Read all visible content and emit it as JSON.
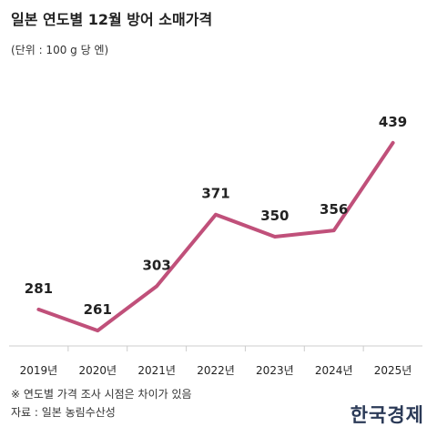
{
  "title": "일본 연도별 12월 방어 소매가격",
  "unit": "(단위 : 100 g 당 엔)",
  "note": "※ 연도별 가격 조사 시점은 차이가 있음",
  "source": "자료 : 일본 농림수산성",
  "logo_text": "한국경제",
  "colors": {
    "line": "#c0507a",
    "axis": "#cccccc",
    "text": "#222222"
  },
  "chart_data": {
    "type": "line",
    "title": "일본 연도별 12월 방어 소매가격",
    "xlabel": "",
    "ylabel": "",
    "categories": [
      "2019년",
      "2020년",
      "2021년",
      "2022년",
      "2023년",
      "2024년",
      "2025년"
    ],
    "series": [
      {
        "values": [
          281,
          261,
          303,
          371,
          350,
          356,
          439
        ]
      }
    ],
    "ylim": [
      160,
      540
    ],
    "grid": false,
    "data_labels": [
      "281",
      "261",
      "303",
      "371",
      "350",
      "356",
      "439"
    ]
  }
}
